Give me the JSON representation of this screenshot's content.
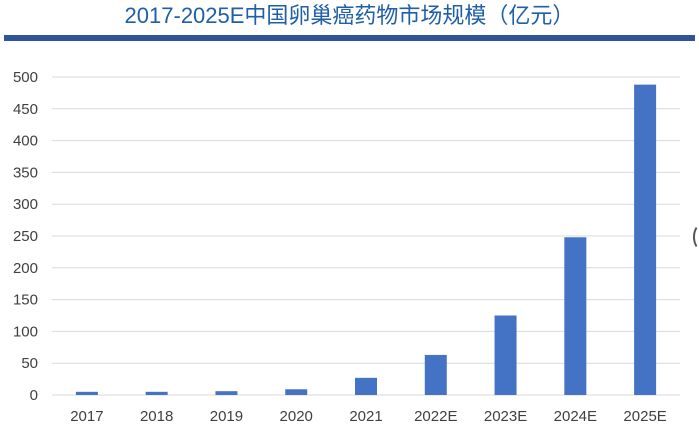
{
  "chart_data": {
    "type": "bar",
    "title": "2017-2025E中国卵巢癌药物市场规模（亿元）",
    "categories": [
      "2017",
      "2018",
      "2019",
      "2020",
      "2021",
      "2022E",
      "2023E",
      "2024E",
      "2025E"
    ],
    "values": [
      5,
      5,
      6,
      9,
      27,
      63,
      125,
      248,
      488
    ],
    "ylim": [
      0,
      500
    ],
    "yticks": [
      0,
      50,
      100,
      150,
      200,
      250,
      300,
      350,
      400,
      450,
      500
    ],
    "grid": true,
    "bar_color": "#4472c4"
  }
}
